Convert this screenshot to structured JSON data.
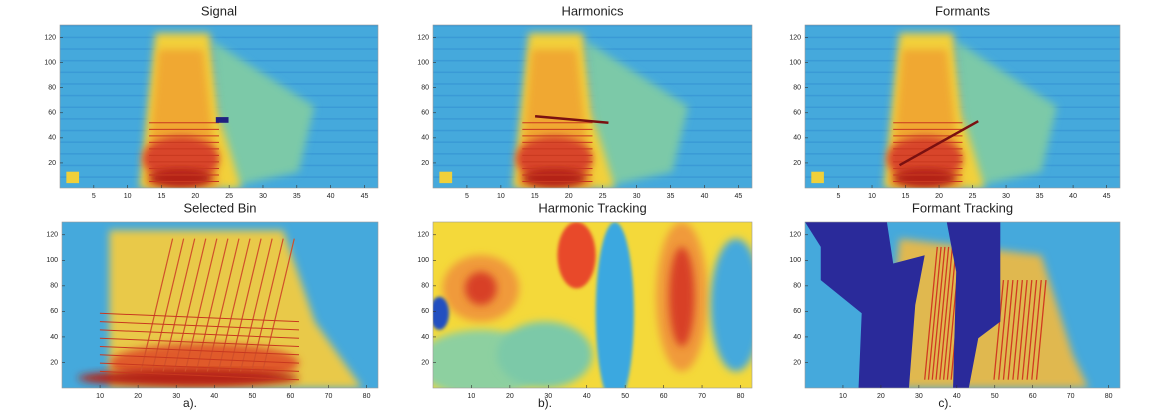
{
  "panels": [
    {
      "title": "Signal",
      "kind": "signal",
      "xlim": [
        0,
        47
      ],
      "ylim": [
        0,
        130
      ],
      "xticks": [
        5,
        10,
        15,
        20,
        25,
        30,
        35,
        40,
        45
      ],
      "yticks": [
        20,
        40,
        60,
        80,
        100,
        120
      ]
    },
    {
      "title": "Harmonics",
      "kind": "harmonics",
      "xlim": [
        0,
        47
      ],
      "ylim": [
        0,
        130
      ],
      "xticks": [
        5,
        10,
        15,
        20,
        25,
        30,
        35,
        40,
        45
      ],
      "yticks": [
        20,
        40,
        60,
        80,
        100,
        120
      ]
    },
    {
      "title": "Formants",
      "kind": "formants",
      "xlim": [
        0,
        47
      ],
      "ylim": [
        0,
        130
      ],
      "xticks": [
        5,
        10,
        15,
        20,
        25,
        30,
        35,
        40,
        45
      ],
      "yticks": [
        20,
        40,
        60,
        80,
        100,
        120
      ]
    },
    {
      "title": "Selected Bin",
      "kind": "selected",
      "xlim": [
        0,
        83
      ],
      "ylim": [
        0,
        130
      ],
      "xticks": [
        10,
        20,
        30,
        40,
        50,
        60,
        70,
        80
      ],
      "yticks": [
        20,
        40,
        60,
        80,
        100,
        120
      ]
    },
    {
      "title": "Harmonic Tracking",
      "kind": "htrack",
      "xlim": [
        0,
        83
      ],
      "ylim": [
        0,
        130
      ],
      "xticks": [
        10,
        20,
        30,
        40,
        50,
        60,
        70,
        80
      ],
      "yticks": [
        20,
        40,
        60,
        80,
        100,
        120
      ]
    },
    {
      "title": "Formant Tracking",
      "kind": "ftrack",
      "xlim": [
        0,
        83
      ],
      "ylim": [
        0,
        130
      ],
      "xticks": [
        10,
        20,
        30,
        40,
        50,
        60,
        70,
        80
      ],
      "yticks": [
        20,
        40,
        60,
        80,
        100,
        120
      ]
    }
  ],
  "captions": [
    "a).",
    "b).",
    "c)."
  ]
}
